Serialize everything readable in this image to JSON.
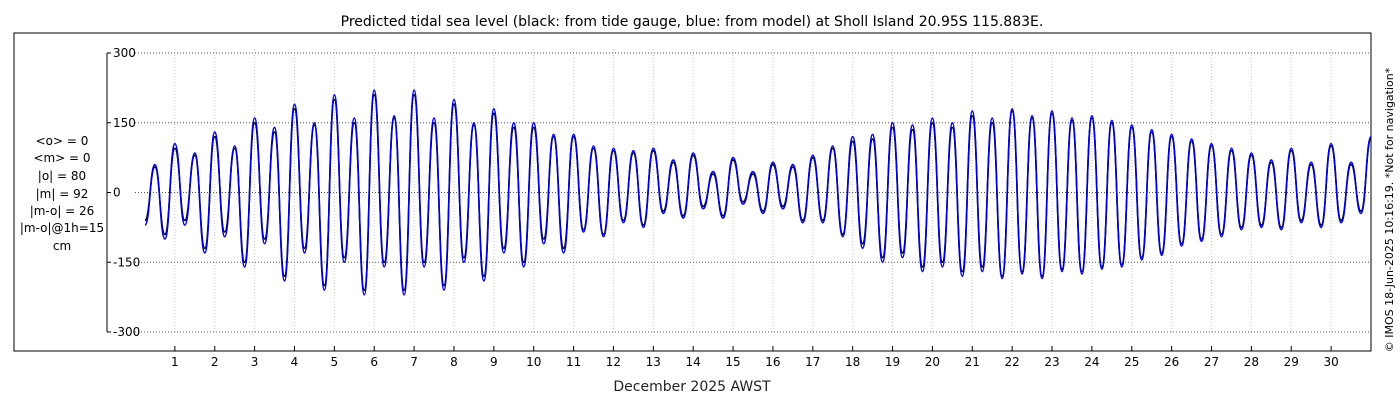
{
  "chart_data": {
    "type": "line",
    "title": "Predicted tidal sea level (black: from tide gauge, blue: from model) at Sholl Island 20.95S 115.883E.",
    "xlabel": "December 2025 AWST",
    "ylabel": "",
    "ylim": [
      -300,
      300
    ],
    "xlim": [
      0,
      31
    ],
    "yticks": [
      300,
      150,
      0,
      -150,
      -300
    ],
    "ytick_labels": [
      "300",
      "150",
      "0",
      "-150",
      "-300"
    ],
    "xticks": [
      "1",
      "2",
      "3",
      "4",
      "5",
      "6",
      "7",
      "8",
      "9",
      "10",
      "11",
      "12",
      "13",
      "14",
      "15",
      "16",
      "17",
      "18",
      "19",
      "20",
      "21",
      "22",
      "23",
      "24",
      "25",
      "26",
      "27",
      "28",
      "29",
      "30"
    ],
    "grid": true,
    "series_colors": {
      "gauge": "#000000",
      "model": "#0000dd"
    },
    "series": [
      {
        "name": "tide gauge",
        "x": [
          0.25,
          0.5,
          0.75,
          1.0,
          1.25,
          1.5,
          1.75,
          2.0,
          2.25,
          2.5,
          2.75,
          3.0,
          3.25,
          3.5,
          3.75,
          4.0,
          4.25,
          4.5,
          4.75,
          5.0,
          5.25,
          5.5,
          5.75,
          6.0,
          6.25,
          6.5,
          6.75,
          7.0,
          7.25,
          7.5,
          7.75,
          8.0,
          8.25,
          8.5,
          8.75,
          9.0,
          9.25,
          9.5,
          9.75,
          10.0,
          10.25,
          10.5,
          10.75,
          11.0,
          11.25,
          11.5,
          11.75,
          12.0,
          12.25,
          12.5,
          12.75,
          13.0,
          13.25,
          13.5,
          13.75,
          14.0,
          14.25,
          14.5,
          14.75,
          15.0,
          15.25,
          15.5,
          15.75,
          16.0,
          16.25,
          16.5,
          16.75,
          17.0,
          17.25,
          17.5,
          17.75,
          18.0,
          18.25,
          18.5,
          18.75,
          19.0,
          19.25,
          19.5,
          19.75,
          20.0,
          20.25,
          20.5,
          20.75,
          21.0,
          21.25,
          21.5,
          21.75,
          22.0,
          22.25,
          22.5,
          22.75,
          23.0,
          23.25,
          23.5,
          23.75,
          24.0,
          24.25,
          24.5,
          24.75,
          25.0,
          25.25,
          25.5,
          25.75,
          26.0,
          26.25,
          26.5,
          26.75,
          27.0,
          27.25,
          27.5,
          27.75,
          28.0,
          28.25,
          28.5,
          28.75,
          29.0,
          29.25,
          29.5,
          29.75,
          30.0,
          30.25,
          30.5,
          30.75,
          31.0
        ],
        "y": [
          -60,
          55,
          -90,
          95,
          -60,
          80,
          -120,
          120,
          -85,
          95,
          -150,
          150,
          -100,
          130,
          -180,
          180,
          -120,
          145,
          -200,
          200,
          -140,
          150,
          -210,
          210,
          -150,
          160,
          -210,
          210,
          -150,
          150,
          -200,
          190,
          -140,
          145,
          -180,
          170,
          -120,
          140,
          -150,
          140,
          -100,
          120,
          -120,
          120,
          -80,
          95,
          -90,
          90,
          -60,
          85,
          -70,
          90,
          -40,
          65,
          -50,
          80,
          -30,
          40,
          -50,
          70,
          -20,
          40,
          -40,
          60,
          -30,
          55,
          -60,
          75,
          -60,
          95,
          -90,
          110,
          -110,
          115,
          -140,
          140,
          -130,
          135,
          -160,
          150,
          -150,
          140,
          -170,
          165,
          -160,
          150,
          -180,
          175,
          -170,
          160,
          -180,
          170,
          -165,
          155,
          -170,
          160,
          -160,
          150,
          -155,
          140,
          -140,
          130,
          -130,
          120,
          -110,
          110,
          -100,
          100,
          -90,
          90,
          -75,
          80,
          -70,
          65,
          -75,
          90,
          -60,
          60,
          -70,
          100,
          -60,
          60,
          -40,
          115
        ]
      },
      {
        "name": "model",
        "x": [
          0.25,
          0.5,
          0.75,
          1.0,
          1.25,
          1.5,
          1.75,
          2.0,
          2.25,
          2.5,
          2.75,
          3.0,
          3.25,
          3.5,
          3.75,
          4.0,
          4.25,
          4.5,
          4.75,
          5.0,
          5.25,
          5.5,
          5.75,
          6.0,
          6.25,
          6.5,
          6.75,
          7.0,
          7.25,
          7.5,
          7.75,
          8.0,
          8.25,
          8.5,
          8.75,
          9.0,
          9.25,
          9.5,
          9.75,
          10.0,
          10.25,
          10.5,
          10.75,
          11.0,
          11.25,
          11.5,
          11.75,
          12.0,
          12.25,
          12.5,
          12.75,
          13.0,
          13.25,
          13.5,
          13.75,
          14.0,
          14.25,
          14.5,
          14.75,
          15.0,
          15.25,
          15.5,
          15.75,
          16.0,
          16.25,
          16.5,
          16.75,
          17.0,
          17.25,
          17.5,
          17.75,
          18.0,
          18.25,
          18.5,
          18.75,
          19.0,
          19.25,
          19.5,
          19.75,
          20.0,
          20.25,
          20.5,
          20.75,
          21.0,
          21.25,
          21.5,
          21.75,
          22.0,
          22.25,
          22.5,
          22.75,
          23.0,
          23.25,
          23.5,
          23.75,
          24.0,
          24.25,
          24.5,
          24.75,
          25.0,
          25.25,
          25.5,
          25.75,
          26.0,
          26.25,
          26.5,
          26.75,
          27.0,
          27.25,
          27.5,
          27.75,
          28.0,
          28.25,
          28.5,
          28.75,
          29.0,
          29.25,
          29.5,
          29.75,
          30.0,
          30.25,
          30.5,
          30.75,
          31.0
        ],
        "y": [
          -70,
          60,
          -100,
          105,
          -70,
          85,
          -130,
          130,
          -95,
          100,
          -160,
          160,
          -110,
          140,
          -190,
          190,
          -130,
          150,
          -210,
          210,
          -150,
          160,
          -220,
          220,
          -160,
          165,
          -220,
          220,
          -160,
          160,
          -210,
          200,
          -150,
          150,
          -190,
          180,
          -130,
          150,
          -160,
          150,
          -110,
          125,
          -130,
          125,
          -85,
          100,
          -95,
          95,
          -65,
          90,
          -75,
          95,
          -45,
          70,
          -55,
          85,
          -35,
          45,
          -55,
          75,
          -25,
          45,
          -45,
          65,
          -35,
          60,
          -65,
          80,
          -65,
          100,
          -95,
          120,
          -120,
          125,
          -150,
          150,
          -140,
          145,
          -170,
          160,
          -160,
          150,
          -180,
          175,
          -170,
          160,
          -185,
          180,
          -175,
          165,
          -185,
          175,
          -170,
          160,
          -175,
          165,
          -165,
          155,
          -160,
          145,
          -145,
          135,
          -135,
          125,
          -115,
          115,
          -105,
          105,
          -95,
          95,
          -80,
          85,
          -75,
          70,
          -80,
          95,
          -65,
          65,
          -75,
          105,
          -65,
          65,
          -45,
          120
        ]
      }
    ],
    "side_stats": [
      "<o> = 0",
      "<m> = 0",
      "|o| = 80",
      "|m| = 92",
      "|m-o| = 26",
      "|m-o|@1h=15",
      "cm"
    ],
    "credit": "© IMOS 18-Jun-2025 10:16:19. *Not for navigation*"
  }
}
